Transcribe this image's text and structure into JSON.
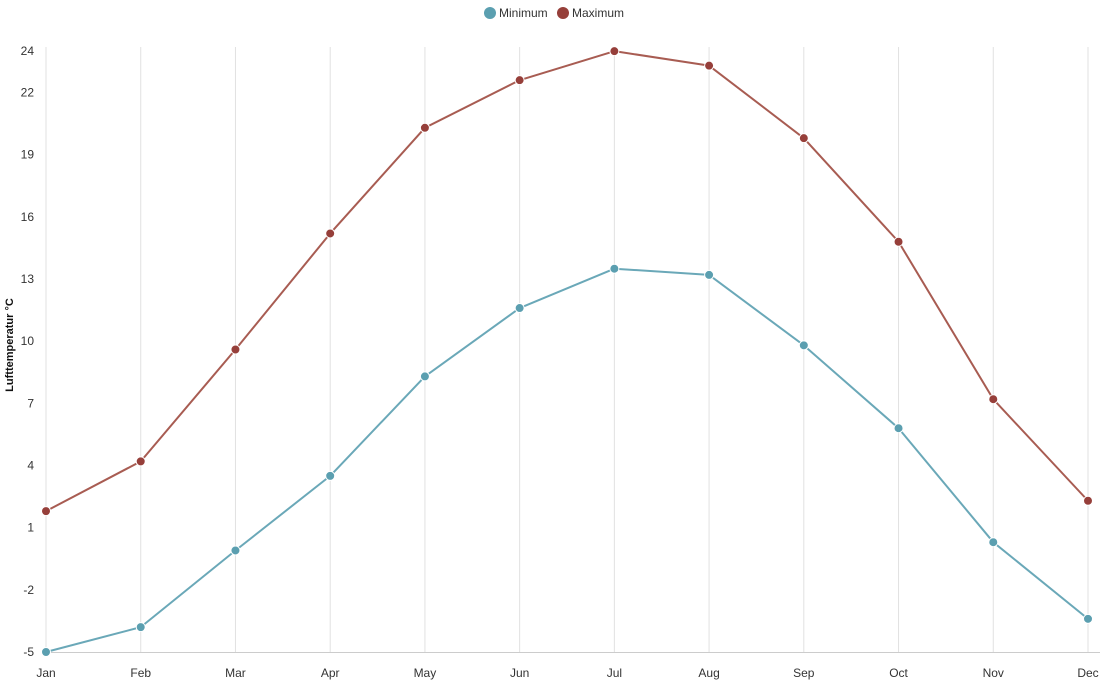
{
  "chart_data": {
    "type": "line",
    "title": "",
    "xlabel": "",
    "ylabel": "Lufttemperatur °C",
    "categories": [
      "Jan",
      "Feb",
      "Mar",
      "Apr",
      "May",
      "Jun",
      "Jul",
      "Aug",
      "Sep",
      "Oct",
      "Nov",
      "Dec"
    ],
    "y_ticks": [
      "-5",
      "-2",
      "1",
      "4",
      "7",
      "10",
      "13",
      "16",
      "19",
      "22",
      "24"
    ],
    "ylim": [
      -5,
      24.2
    ],
    "grid": "vertical",
    "legend_position": "top-center",
    "series": [
      {
        "name": "Minimum",
        "color": "#6aa8b8",
        "marker_color": "#5b9fb0",
        "values": [
          -5.0,
          -3.8,
          -0.1,
          3.5,
          8.3,
          11.6,
          13.5,
          13.2,
          9.8,
          5.8,
          0.3,
          -3.4
        ]
      },
      {
        "name": "Maximum",
        "color": "#a85c52",
        "marker_color": "#963f3a",
        "values": [
          1.8,
          4.2,
          9.6,
          15.2,
          20.3,
          22.6,
          24.0,
          23.3,
          19.8,
          14.8,
          7.2,
          2.3
        ]
      }
    ]
  }
}
